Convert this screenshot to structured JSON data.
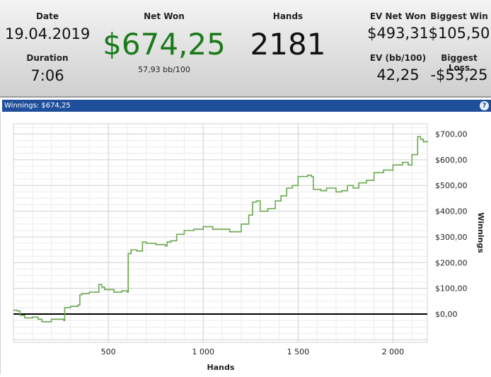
{
  "stats": {
    "date_label": "Date",
    "date_value": "19.04.2019",
    "duration_label": "Duration",
    "duration_value": "7:06",
    "net_won_label": "Net Won",
    "net_won_value": "$674,25",
    "net_won_sub": "57,93 bb/100",
    "hands_label": "Hands",
    "hands_value": "2181",
    "ev_net_won_label": "EV Net Won",
    "ev_net_won_value": "$493,31",
    "ev_bb_label": "EV (bb/100)",
    "ev_bb_value": "42,25",
    "biggest_win_label": "Biggest Win",
    "biggest_win_value": "$105,50",
    "biggest_loss_label": "Biggest Loss",
    "biggest_loss_value": "-$53,25"
  },
  "panel": {
    "title": "Winnings: $674,25",
    "help": "?"
  },
  "colors": {
    "net_won": "#1a7a1a",
    "line": "#6aa84f",
    "zero_line": "#000000",
    "header_bar": "#1f4f9a"
  },
  "chart_data": {
    "type": "line",
    "xlabel": "Hands",
    "ylabel": "Winnings",
    "xlim": [
      0,
      2181
    ],
    "ylim": [
      -110,
      740
    ],
    "x_ticks": [
      500,
      1000,
      1500,
      2000
    ],
    "x_tick_labels": [
      "500",
      "1 000",
      "1 500",
      "2 000"
    ],
    "y_ticks": [
      0,
      100,
      200,
      300,
      400,
      500,
      600,
      700
    ],
    "y_tick_labels": [
      "$0,00",
      "$100,00",
      "$200,00",
      "$300,00",
      "$400,00",
      "$500,00",
      "$600,00",
      "$700,00"
    ],
    "zero_line": true,
    "grid": true,
    "series": [
      {
        "x": [
          0,
          20,
          35,
          60,
          100,
          130,
          150,
          200,
          250,
          265,
          270,
          300,
          340,
          350,
          360,
          400,
          450,
          465,
          480,
          530,
          570,
          600,
          605,
          620,
          650,
          680,
          700,
          750,
          800,
          810,
          830,
          860,
          900,
          950,
          1000,
          1050,
          1100,
          1140,
          1180,
          1200,
          1240,
          1260,
          1280,
          1300,
          1320,
          1340,
          1380,
          1410,
          1440,
          1470,
          1500,
          1550,
          1570,
          1580,
          1620,
          1650,
          1660,
          1700,
          1730,
          1760,
          1790,
          1820,
          1860,
          1900,
          1950,
          2000,
          2050,
          2080,
          2100,
          2130,
          2145,
          2160,
          2181
        ],
        "y": [
          15,
          12,
          -5,
          -15,
          -12,
          -20,
          -30,
          -20,
          -20,
          -25,
          25,
          30,
          35,
          75,
          80,
          85,
          115,
          105,
          95,
          85,
          90,
          85,
          235,
          250,
          245,
          280,
          275,
          270,
          265,
          280,
          285,
          310,
          325,
          330,
          340,
          330,
          330,
          320,
          320,
          350,
          385,
          435,
          440,
          400,
          400,
          410,
          440,
          460,
          490,
          500,
          535,
          540,
          535,
          485,
          480,
          490,
          490,
          475,
          480,
          500,
          490,
          510,
          520,
          550,
          560,
          580,
          590,
          580,
          620,
          690,
          680,
          670,
          674
        ]
      }
    ]
  }
}
